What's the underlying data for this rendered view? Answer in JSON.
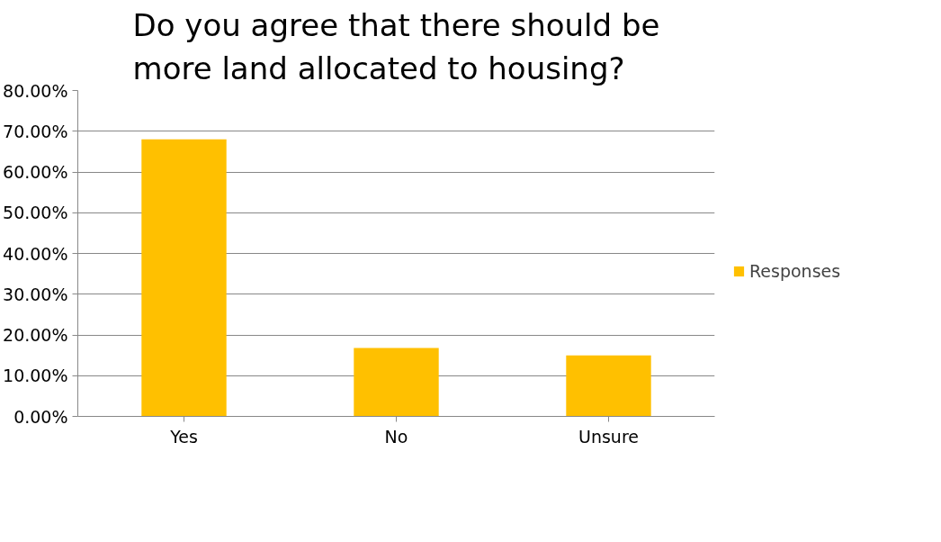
{
  "chart_data": {
    "type": "bar",
    "title": "Do you agree that there should be\nmore land allocated to housing?",
    "categories": [
      "Yes",
      "No",
      "Unsure"
    ],
    "series": [
      {
        "name": "Responses",
        "color": "#ffc000",
        "values": [
          68,
          16.8,
          15
        ]
      }
    ],
    "ylim": [
      0,
      80
    ],
    "yticks": [
      {
        "value": 0,
        "label": "0.00%"
      },
      {
        "value": 10,
        "label": "10.00%"
      },
      {
        "value": 20,
        "label": "20.00%"
      },
      {
        "value": 30,
        "label": "30.00%"
      },
      {
        "value": 40,
        "label": "40.00%"
      },
      {
        "value": 50,
        "label": "50.00%"
      },
      {
        "value": 60,
        "label": "60.00%"
      },
      {
        "value": 70,
        "label": "70.00%"
      },
      {
        "value": 80,
        "label": "80.00%"
      }
    ],
    "grid": "y",
    "legend": "right"
  }
}
